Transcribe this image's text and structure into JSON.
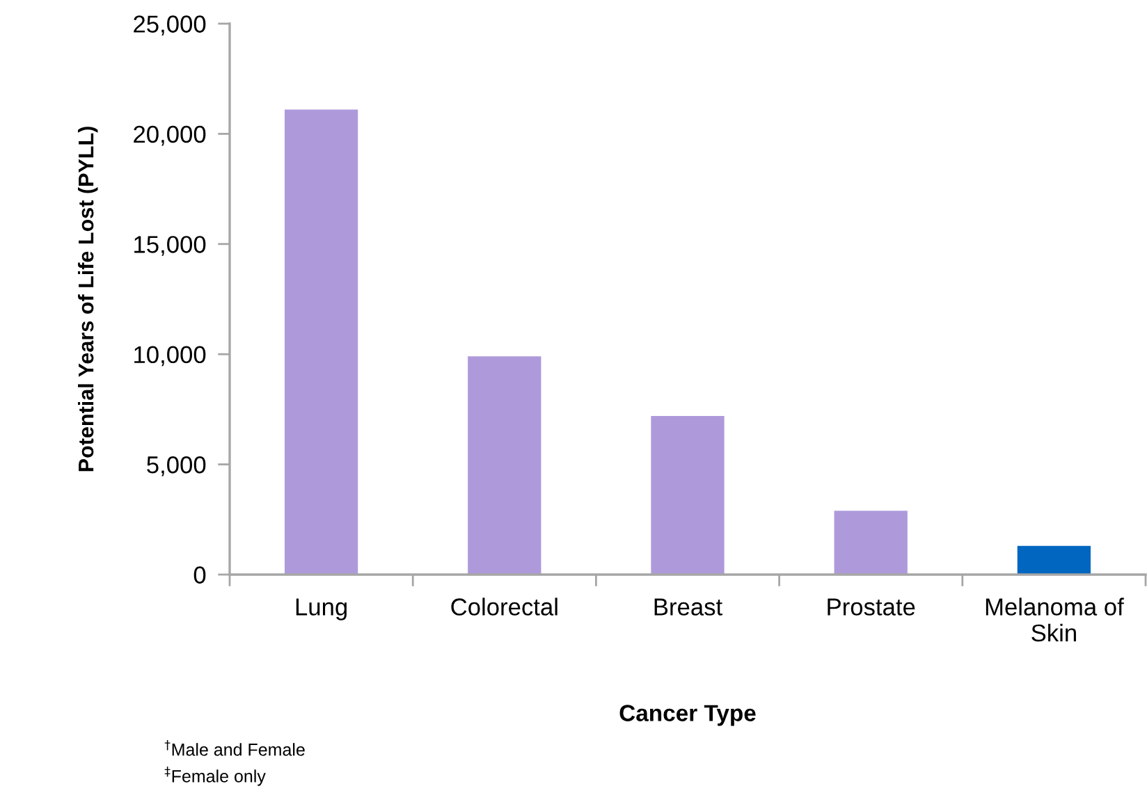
{
  "chart_data": {
    "type": "bar",
    "xlabel": "Cancer Type",
    "ylabel": "Potential Years of Life Lost (PYLL)",
    "categories": [
      "Lung",
      "Colorectal",
      "Breast",
      "Prostate",
      "Melanoma of\nSkin"
    ],
    "values": [
      21100,
      9900,
      7200,
      2900,
      1300
    ],
    "colors": [
      "#ae9ada",
      "#ae9ada",
      "#ae9ada",
      "#ae9ada",
      "#0066c0"
    ],
    "ylim": [
      0,
      25000
    ],
    "yticks": [
      0,
      {
        "value": 5000,
        "label": "5,000"
      },
      {
        "value": 10000,
        "label": "10,000"
      },
      {
        "value": 15000,
        "label": "15,000"
      },
      {
        "value": 20000,
        "label": "20,000"
      },
      {
        "value": 25000,
        "label": "25,000"
      }
    ],
    "annotations": [
      "$^{†}$Male and Female",
      "$^{‡}$Female only"
    ]
  }
}
